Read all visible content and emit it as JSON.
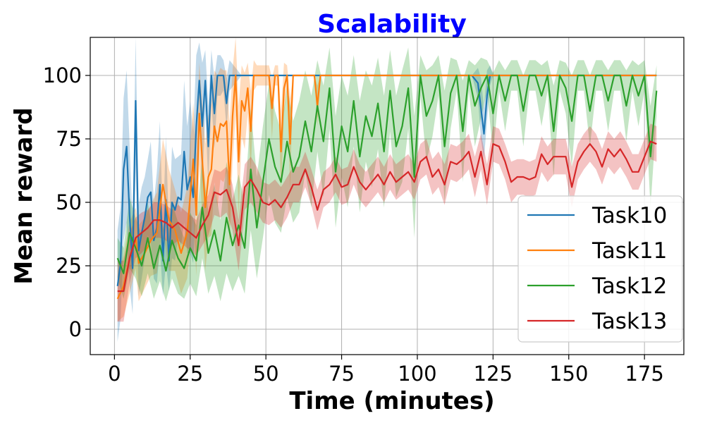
{
  "chart_data": {
    "type": "line",
    "title": "Scalability",
    "title_color": "#0000ff",
    "xlabel": "Time (minutes)",
    "ylabel": "Mean reward",
    "xlim": [
      -8,
      188
    ],
    "ylim": [
      -10,
      115
    ],
    "xticks": [
      0,
      25,
      50,
      75,
      100,
      125,
      150,
      175
    ],
    "xtick_labels": [
      "0",
      "25",
      "50",
      "75",
      "100",
      "125",
      "150",
      "175"
    ],
    "yticks": [
      0,
      25,
      50,
      75,
      100
    ],
    "ytick_labels": [
      "0",
      "25",
      "50",
      "75",
      "100"
    ],
    "grid": true,
    "legend_position": "lower-right",
    "series": [
      {
        "name": "Task10",
        "color": "#1f77b4",
        "x": [
          1,
          2,
          3,
          4,
          5,
          6,
          7,
          8,
          9,
          10,
          11,
          12,
          13,
          14,
          15,
          16,
          17,
          18,
          19,
          20,
          21,
          22,
          23,
          24,
          25,
          26,
          27,
          28,
          29,
          30,
          31,
          32,
          33,
          34,
          35,
          36,
          37,
          38,
          40,
          42,
          44,
          46,
          48,
          50,
          60,
          80,
          100,
          110,
          118,
          120,
          121,
          122,
          123,
          124,
          125,
          126,
          130,
          150,
          179
        ],
        "y": [
          17,
          26,
          63,
          72,
          45,
          24,
          90,
          31,
          38,
          44,
          52,
          54,
          35,
          40,
          57,
          27,
          51,
          27,
          50,
          47,
          52,
          51,
          70,
          55,
          60,
          52,
          80,
          98,
          80,
          98,
          72,
          100,
          85,
          100,
          100,
          100,
          89,
          100,
          100,
          100,
          100,
          100,
          100,
          100,
          100,
          100,
          100,
          100,
          100,
          97,
          87,
          77,
          92,
          100,
          100,
          100,
          100,
          100,
          100
        ],
        "band": [
          22,
          22,
          28,
          30,
          28,
          18,
          25,
          18,
          18,
          16,
          15,
          20,
          15,
          22,
          25,
          14,
          25,
          12,
          22,
          20,
          16,
          18,
          28,
          25,
          30,
          26,
          28,
          15,
          25,
          12,
          16,
          10,
          14,
          8,
          8,
          6,
          10,
          6,
          3,
          0,
          0,
          0,
          0,
          0,
          0,
          0,
          0,
          0,
          0,
          6,
          12,
          10,
          10,
          4,
          0,
          0,
          0,
          0,
          0
        ]
      },
      {
        "name": "Task11",
        "color": "#ff7f0e",
        "x": [
          1,
          3,
          5,
          7,
          8,
          10,
          12,
          14,
          16,
          18,
          20,
          22,
          24,
          26,
          27,
          28,
          30,
          31,
          32,
          33,
          34,
          35,
          36,
          37,
          38,
          39,
          40,
          41,
          42,
          43,
          44,
          45,
          46,
          47,
          48,
          49,
          50,
          51,
          52,
          53,
          54,
          55,
          56,
          57,
          58,
          59,
          60,
          66,
          67,
          68,
          70,
          72,
          80,
          100,
          120,
          140,
          160,
          179
        ],
        "y": [
          12,
          17,
          28,
          36,
          26,
          30,
          35,
          38,
          57,
          43,
          39,
          30,
          38,
          67,
          45,
          85,
          48,
          60,
          63,
          80,
          74,
          81,
          80,
          82,
          57,
          84,
          100,
          66,
          90,
          86,
          95,
          78,
          100,
          100,
          100,
          100,
          100,
          100,
          87,
          100,
          100,
          70,
          95,
          100,
          73,
          100,
          100,
          100,
          88,
          100,
          100,
          100,
          100,
          100,
          100,
          100,
          100,
          100
        ],
        "band": [
          9,
          12,
          14,
          12,
          15,
          14,
          14,
          16,
          18,
          20,
          16,
          16,
          18,
          22,
          24,
          20,
          25,
          24,
          26,
          22,
          26,
          22,
          22,
          20,
          24,
          18,
          16,
          22,
          14,
          15,
          10,
          16,
          6,
          4,
          4,
          4,
          4,
          4,
          12,
          4,
          4,
          16,
          10,
          4,
          18,
          0,
          0,
          0,
          8,
          0,
          0,
          0,
          0,
          0,
          0,
          0,
          0,
          0
        ]
      },
      {
        "name": "Task12",
        "color": "#2ca02c",
        "x": [
          1,
          3,
          5,
          7,
          9,
          11,
          13,
          15,
          17,
          19,
          21,
          23,
          25,
          27,
          29,
          31,
          33,
          35,
          37,
          39,
          41,
          43,
          45,
          47,
          49,
          51,
          53,
          55,
          57,
          59,
          61,
          63,
          65,
          67,
          69,
          71,
          73,
          75,
          77,
          79,
          81,
          83,
          85,
          87,
          89,
          91,
          93,
          95,
          97,
          99,
          101,
          103,
          105,
          107,
          109,
          111,
          113,
          115,
          117,
          119,
          121,
          123,
          125,
          127,
          129,
          131,
          133,
          135,
          137,
          139,
          141,
          143,
          145,
          147,
          149,
          151,
          153,
          155,
          157,
          159,
          161,
          163,
          165,
          167,
          169,
          171,
          173,
          175,
          177,
          179
        ],
        "y": [
          28,
          22,
          38,
          32,
          25,
          36,
          24,
          33,
          23,
          35,
          28,
          24,
          32,
          27,
          48,
          30,
          39,
          27,
          44,
          33,
          41,
          32,
          63,
          40,
          58,
          75,
          64,
          58,
          74,
          62,
          68,
          82,
          70,
          88,
          74,
          95,
          62,
          80,
          70,
          90,
          68,
          84,
          76,
          89,
          70,
          94,
          72,
          80,
          95,
          60,
          100,
          84,
          90,
          100,
          72,
          93,
          100,
          78,
          100,
          88,
          95,
          100,
          85,
          100,
          90,
          100,
          100,
          86,
          100,
          100,
          92,
          100,
          78,
          100,
          95,
          82,
          100,
          100,
          86,
          100,
          100,
          90,
          100,
          100,
          88,
          100,
          92,
          100,
          68,
          94
        ],
        "band": [
          8,
          10,
          14,
          12,
          12,
          14,
          12,
          14,
          12,
          15,
          14,
          12,
          14,
          14,
          20,
          16,
          18,
          16,
          22,
          18,
          20,
          18,
          24,
          20,
          22,
          22,
          22,
          20,
          22,
          20,
          22,
          20,
          22,
          18,
          22,
          16,
          22,
          20,
          22,
          18,
          22,
          18,
          20,
          18,
          22,
          16,
          20,
          22,
          16,
          24,
          8,
          18,
          14,
          8,
          22,
          14,
          6,
          20,
          6,
          16,
          12,
          6,
          16,
          6,
          12,
          6,
          6,
          14,
          6,
          6,
          12,
          6,
          18,
          6,
          10,
          18,
          6,
          6,
          14,
          6,
          6,
          12,
          6,
          6,
          14,
          6,
          12,
          6,
          20,
          10
        ]
      },
      {
        "name": "Task13",
        "color": "#d62728",
        "x": [
          1,
          3,
          5,
          7,
          9,
          11,
          13,
          15,
          17,
          19,
          21,
          23,
          25,
          27,
          29,
          31,
          33,
          35,
          37,
          39,
          41,
          43,
          45,
          47,
          49,
          51,
          53,
          55,
          57,
          59,
          61,
          63,
          65,
          67,
          69,
          71,
          73,
          75,
          77,
          79,
          81,
          83,
          85,
          87,
          89,
          91,
          93,
          95,
          97,
          99,
          101,
          103,
          105,
          107,
          109,
          111,
          113,
          115,
          117,
          119,
          121,
          123,
          125,
          127,
          129,
          131,
          133,
          135,
          137,
          139,
          141,
          143,
          145,
          147,
          149,
          151,
          153,
          155,
          157,
          159,
          161,
          163,
          165,
          167,
          169,
          171,
          173,
          175,
          177,
          179
        ],
        "y": [
          15,
          15,
          28,
          36,
          38,
          40,
          43,
          43,
          42,
          40,
          42,
          40,
          38,
          36,
          41,
          45,
          54,
          53,
          55,
          48,
          33,
          56,
          59,
          55,
          50,
          49,
          51,
          48,
          52,
          57,
          57,
          63,
          56,
          47,
          55,
          57,
          61,
          56,
          57,
          64,
          58,
          55,
          58,
          61,
          57,
          62,
          58,
          60,
          62,
          58,
          66,
          68,
          60,
          63,
          57,
          66,
          65,
          67,
          70,
          60,
          70,
          57,
          73,
          72,
          66,
          58,
          60,
          60,
          59,
          60,
          69,
          65,
          68,
          68,
          68,
          56,
          66,
          70,
          73,
          70,
          64,
          71,
          68,
          71,
          67,
          62,
          62,
          68,
          74,
          73
        ],
        "band": [
          12,
          12,
          10,
          8,
          8,
          7,
          7,
          7,
          7,
          7,
          7,
          7,
          7,
          7,
          8,
          8,
          9,
          9,
          9,
          9,
          10,
          9,
          9,
          9,
          8,
          8,
          8,
          8,
          8,
          7,
          7,
          7,
          7,
          8,
          7,
          7,
          7,
          7,
          7,
          7,
          7,
          7,
          7,
          7,
          7,
          7,
          7,
          7,
          7,
          7,
          7,
          7,
          7,
          7,
          8,
          7,
          7,
          7,
          7,
          8,
          7,
          8,
          7,
          7,
          7,
          8,
          7,
          7,
          7,
          7,
          7,
          7,
          7,
          7,
          7,
          8,
          7,
          7,
          7,
          7,
          7,
          7,
          7,
          7,
          7,
          7,
          7,
          7,
          7,
          7
        ]
      }
    ]
  }
}
